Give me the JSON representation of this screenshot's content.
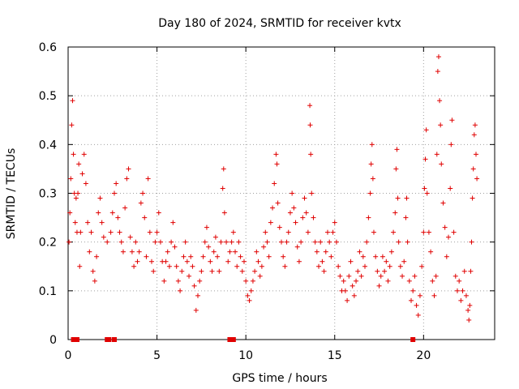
{
  "chart_data": {
    "type": "scatter",
    "title": "Day 180 of 2024, SRMTID for receiver kvtx",
    "xlabel": "GPS time / hours",
    "ylabel": "SRMTID / TECUs",
    "xlim": [
      0,
      24
    ],
    "ylim": [
      0,
      0.6
    ],
    "xticks": [
      0,
      5,
      10,
      15,
      20
    ],
    "xtick_labels": [
      "0",
      "5",
      "10",
      "15",
      "20"
    ],
    "yticks": [
      0,
      0.1,
      0.2,
      0.3,
      0.4,
      0.5,
      0.6
    ],
    "ytick_labels": [
      "0",
      "0.1",
      "0.2",
      "0.3",
      "0.4",
      "0.5",
      "0.6"
    ],
    "grid": true,
    "marker": "+",
    "color": "#e00000",
    "series": [
      {
        "name": "SRMTID",
        "points": [
          [
            0.05,
            0.2
          ],
          [
            0.1,
            0.26
          ],
          [
            0.15,
            0.33
          ],
          [
            0.2,
            0.44
          ],
          [
            0.25,
            0.49
          ],
          [
            0.3,
            0.38
          ],
          [
            0.35,
            0.3
          ],
          [
            0.4,
            0.24
          ],
          [
            0.45,
            0.29
          ],
          [
            0.5,
            0.22
          ],
          [
            0.55,
            0.3
          ],
          [
            0.6,
            0.36
          ],
          [
            0.65,
            0.15
          ],
          [
            0.7,
            0.22
          ],
          [
            0.8,
            0.34
          ],
          [
            0.9,
            0.38
          ],
          [
            1.0,
            0.32
          ],
          [
            1.1,
            0.24
          ],
          [
            1.2,
            0.18
          ],
          [
            1.3,
            0.22
          ],
          [
            1.4,
            0.14
          ],
          [
            1.5,
            0.12
          ],
          [
            1.6,
            0.17
          ],
          [
            1.7,
            0.26
          ],
          [
            1.8,
            0.29
          ],
          [
            1.9,
            0.24
          ],
          [
            2.0,
            0.21
          ],
          [
            2.2,
            0.2
          ],
          [
            2.4,
            0.22
          ],
          [
            2.5,
            0.26
          ],
          [
            2.6,
            0.3
          ],
          [
            2.7,
            0.32
          ],
          [
            2.8,
            0.25
          ],
          [
            2.9,
            0.22
          ],
          [
            3.0,
            0.2
          ],
          [
            3.1,
            0.18
          ],
          [
            3.2,
            0.27
          ],
          [
            3.3,
            0.33
          ],
          [
            3.4,
            0.35
          ],
          [
            3.5,
            0.21
          ],
          [
            3.6,
            0.18
          ],
          [
            3.7,
            0.15
          ],
          [
            3.8,
            0.2
          ],
          [
            3.9,
            0.16
          ],
          [
            4.0,
            0.18
          ],
          [
            4.1,
            0.28
          ],
          [
            4.2,
            0.3
          ],
          [
            4.3,
            0.25
          ],
          [
            4.4,
            0.17
          ],
          [
            4.5,
            0.33
          ],
          [
            4.6,
            0.22
          ],
          [
            4.7,
            0.16
          ],
          [
            4.8,
            0.14
          ],
          [
            4.9,
            0.2
          ],
          [
            5.0,
            0.22
          ],
          [
            5.1,
            0.26
          ],
          [
            5.2,
            0.2
          ],
          [
            5.3,
            0.16
          ],
          [
            5.4,
            0.12
          ],
          [
            5.5,
            0.16
          ],
          [
            5.6,
            0.18
          ],
          [
            5.7,
            0.15
          ],
          [
            5.8,
            0.2
          ],
          [
            5.9,
            0.24
          ],
          [
            6.0,
            0.19
          ],
          [
            6.1,
            0.15
          ],
          [
            6.2,
            0.12
          ],
          [
            6.3,
            0.1
          ],
          [
            6.4,
            0.14
          ],
          [
            6.5,
            0.17
          ],
          [
            6.6,
            0.2
          ],
          [
            6.7,
            0.16
          ],
          [
            6.8,
            0.13
          ],
          [
            6.9,
            0.17
          ],
          [
            7.0,
            0.15
          ],
          [
            7.1,
            0.11
          ],
          [
            7.2,
            0.06
          ],
          [
            7.3,
            0.09
          ],
          [
            7.4,
            0.12
          ],
          [
            7.5,
            0.14
          ],
          [
            7.6,
            0.17
          ],
          [
            7.7,
            0.2
          ],
          [
            7.8,
            0.23
          ],
          [
            7.9,
            0.19
          ],
          [
            8.0,
            0.16
          ],
          [
            8.1,
            0.14
          ],
          [
            8.2,
            0.18
          ],
          [
            8.3,
            0.21
          ],
          [
            8.4,
            0.17
          ],
          [
            8.5,
            0.14
          ],
          [
            8.6,
            0.2
          ],
          [
            8.7,
            0.31
          ],
          [
            8.75,
            0.35
          ],
          [
            8.8,
            0.26
          ],
          [
            8.9,
            0.2
          ],
          [
            9.0,
            0.16
          ],
          [
            9.1,
            0.18
          ],
          [
            9.2,
            0.2
          ],
          [
            9.3,
            0.22
          ],
          [
            9.4,
            0.18
          ],
          [
            9.5,
            0.15
          ],
          [
            9.6,
            0.2
          ],
          [
            9.7,
            0.17
          ],
          [
            9.8,
            0.14
          ],
          [
            9.9,
            0.16
          ],
          [
            10.0,
            0.12
          ],
          [
            10.1,
            0.09
          ],
          [
            10.2,
            0.08
          ],
          [
            10.3,
            0.1
          ],
          [
            10.4,
            0.12
          ],
          [
            10.5,
            0.14
          ],
          [
            10.6,
            0.18
          ],
          [
            10.7,
            0.16
          ],
          [
            10.8,
            0.13
          ],
          [
            10.9,
            0.15
          ],
          [
            11.0,
            0.19
          ],
          [
            11.1,
            0.22
          ],
          [
            11.2,
            0.2
          ],
          [
            11.3,
            0.17
          ],
          [
            11.4,
            0.24
          ],
          [
            11.5,
            0.27
          ],
          [
            11.6,
            0.32
          ],
          [
            11.7,
            0.38
          ],
          [
            11.75,
            0.36
          ],
          [
            11.8,
            0.28
          ],
          [
            11.9,
            0.23
          ],
          [
            12.0,
            0.2
          ],
          [
            12.1,
            0.17
          ],
          [
            12.2,
            0.15
          ],
          [
            12.3,
            0.2
          ],
          [
            12.4,
            0.22
          ],
          [
            12.5,
            0.26
          ],
          [
            12.6,
            0.3
          ],
          [
            12.7,
            0.27
          ],
          [
            12.8,
            0.24
          ],
          [
            12.9,
            0.19
          ],
          [
            13.0,
            0.16
          ],
          [
            13.1,
            0.2
          ],
          [
            13.2,
            0.25
          ],
          [
            13.3,
            0.29
          ],
          [
            13.4,
            0.26
          ],
          [
            13.5,
            0.22
          ],
          [
            13.6,
            0.48
          ],
          [
            13.62,
            0.44
          ],
          [
            13.65,
            0.38
          ],
          [
            13.7,
            0.3
          ],
          [
            13.8,
            0.25
          ],
          [
            13.9,
            0.2
          ],
          [
            14.0,
            0.18
          ],
          [
            14.1,
            0.15
          ],
          [
            14.2,
            0.2
          ],
          [
            14.3,
            0.16
          ],
          [
            14.4,
            0.14
          ],
          [
            14.5,
            0.18
          ],
          [
            14.6,
            0.22
          ],
          [
            14.7,
            0.2
          ],
          [
            14.8,
            0.17
          ],
          [
            14.9,
            0.22
          ],
          [
            15.0,
            0.24
          ],
          [
            15.1,
            0.2
          ],
          [
            15.2,
            0.15
          ],
          [
            15.3,
            0.13
          ],
          [
            15.4,
            0.1
          ],
          [
            15.5,
            0.12
          ],
          [
            15.6,
            0.1
          ],
          [
            15.7,
            0.08
          ],
          [
            15.8,
            0.13
          ],
          [
            15.9,
            0.16
          ],
          [
            16.0,
            0.11
          ],
          [
            16.1,
            0.09
          ],
          [
            16.2,
            0.12
          ],
          [
            16.3,
            0.14
          ],
          [
            16.4,
            0.18
          ],
          [
            16.5,
            0.13
          ],
          [
            16.6,
            0.17
          ],
          [
            16.7,
            0.15
          ],
          [
            16.8,
            0.2
          ],
          [
            16.9,
            0.25
          ],
          [
            17.0,
            0.3
          ],
          [
            17.05,
            0.36
          ],
          [
            17.1,
            0.4
          ],
          [
            17.15,
            0.33
          ],
          [
            17.2,
            0.22
          ],
          [
            17.3,
            0.17
          ],
          [
            17.4,
            0.14
          ],
          [
            17.5,
            0.11
          ],
          [
            17.6,
            0.13
          ],
          [
            17.7,
            0.17
          ],
          [
            17.8,
            0.14
          ],
          [
            17.9,
            0.16
          ],
          [
            18.0,
            0.12
          ],
          [
            18.1,
            0.15
          ],
          [
            18.2,
            0.18
          ],
          [
            18.3,
            0.22
          ],
          [
            18.4,
            0.26
          ],
          [
            18.45,
            0.35
          ],
          [
            18.5,
            0.39
          ],
          [
            18.55,
            0.29
          ],
          [
            18.6,
            0.2
          ],
          [
            18.7,
            0.15
          ],
          [
            18.8,
            0.13
          ],
          [
            18.9,
            0.16
          ],
          [
            19.0,
            0.25
          ],
          [
            19.05,
            0.29
          ],
          [
            19.1,
            0.2
          ],
          [
            19.2,
            0.12
          ],
          [
            19.3,
            0.08
          ],
          [
            19.4,
            0.1
          ],
          [
            19.5,
            0.13
          ],
          [
            19.6,
            0.07
          ],
          [
            19.7,
            0.05
          ],
          [
            19.8,
            0.09
          ],
          [
            19.9,
            0.15
          ],
          [
            20.0,
            0.22
          ],
          [
            20.05,
            0.31
          ],
          [
            20.1,
            0.37
          ],
          [
            20.15,
            0.43
          ],
          [
            20.2,
            0.3
          ],
          [
            20.3,
            0.22
          ],
          [
            20.4,
            0.18
          ],
          [
            20.5,
            0.12
          ],
          [
            20.6,
            0.09
          ],
          [
            20.7,
            0.13
          ],
          [
            20.75,
            0.38
          ],
          [
            20.8,
            0.55
          ],
          [
            20.85,
            0.58
          ],
          [
            20.9,
            0.49
          ],
          [
            20.95,
            0.44
          ],
          [
            21.0,
            0.36
          ],
          [
            21.1,
            0.28
          ],
          [
            21.2,
            0.23
          ],
          [
            21.3,
            0.17
          ],
          [
            21.4,
            0.21
          ],
          [
            21.5,
            0.31
          ],
          [
            21.55,
            0.4
          ],
          [
            21.6,
            0.45
          ],
          [
            21.7,
            0.22
          ],
          [
            21.8,
            0.13
          ],
          [
            21.9,
            0.1
          ],
          [
            22.0,
            0.12
          ],
          [
            22.1,
            0.08
          ],
          [
            22.2,
            0.1
          ],
          [
            22.3,
            0.14
          ],
          [
            22.4,
            0.09
          ],
          [
            22.5,
            0.06
          ],
          [
            22.55,
            0.04
          ],
          [
            22.6,
            0.07
          ],
          [
            22.65,
            0.14
          ],
          [
            22.7,
            0.2
          ],
          [
            22.75,
            0.29
          ],
          [
            22.8,
            0.35
          ],
          [
            22.85,
            0.42
          ],
          [
            22.9,
            0.44
          ],
          [
            22.95,
            0.38
          ],
          [
            23.0,
            0.33
          ]
        ]
      }
    ],
    "gap_markers_x": [
      0.3,
      0.4,
      0.5,
      2.2,
      2.3,
      2.6,
      9.1,
      9.2,
      9.3,
      19.4
    ]
  }
}
